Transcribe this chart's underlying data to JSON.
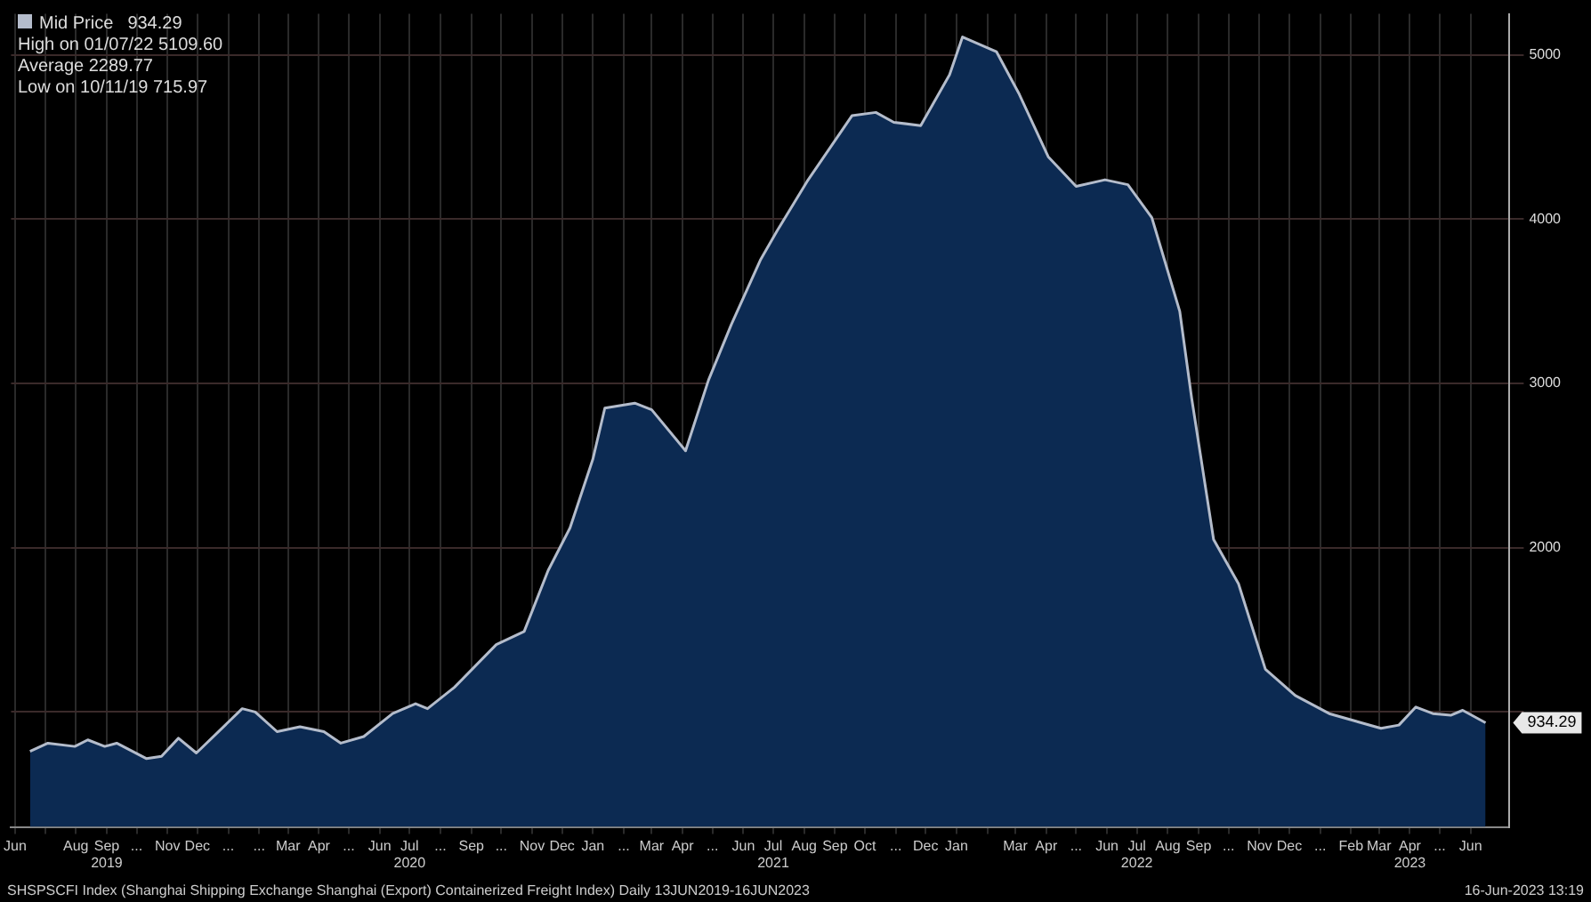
{
  "chart_data": {
    "type": "area",
    "x": [
      "2019-06-16",
      "2019-07-04",
      "2019-07-31",
      "2019-08-13",
      "2019-08-30",
      "2019-09-11",
      "2019-10-11",
      "2019-10-26",
      "2019-11-12",
      "2019-11-30",
      "2020-01-15",
      "2020-01-28",
      "2020-02-19",
      "2020-03-13",
      "2020-04-06",
      "2020-04-23",
      "2020-05-16",
      "2020-06-14",
      "2020-07-07",
      "2020-07-19",
      "2020-08-15",
      "2020-09-26",
      "2020-10-24",
      "2020-11-17",
      "2020-12-09",
      "2021-01-01",
      "2021-01-13",
      "2021-02-12",
      "2021-03-01",
      "2021-04-04",
      "2021-04-27",
      "2021-05-20",
      "2021-06-18",
      "2021-07-05",
      "2021-08-04",
      "2021-09-18",
      "2021-10-12",
      "2021-10-30",
      "2021-11-26",
      "2021-12-25",
      "2022-01-07",
      "2022-02-10",
      "2022-03-05",
      "2022-04-03",
      "2022-05-01",
      "2022-05-30",
      "2022-06-22",
      "2022-07-16",
      "2022-08-13",
      "2022-08-25",
      "2022-09-16",
      "2022-10-11",
      "2022-11-07",
      "2022-12-07",
      "2023-01-10",
      "2023-03-03",
      "2023-03-21",
      "2023-04-07",
      "2023-04-24",
      "2023-05-12",
      "2023-05-24",
      "2023-06-16"
    ],
    "series": [
      {
        "name": "Mid Price",
        "color": "#b4bccb",
        "values": [
          760,
          810,
          790,
          830,
          790,
          810,
          715.97,
          730,
          840,
          750,
          1020,
          1000,
          880,
          910,
          880,
          810,
          850,
          990,
          1050,
          1020,
          1150,
          1410,
          1490,
          1860,
          2120,
          2540,
          2850,
          2880,
          2840,
          2590,
          3020,
          3360,
          3750,
          3930,
          4230,
          4630,
          4650,
          4590,
          4570,
          4880,
          5109.6,
          5020,
          4760,
          4380,
          4200,
          4240,
          4210,
          4010,
          3440,
          2910,
          2050,
          1780,
          1260,
          1100,
          990,
          900,
          920,
          1030,
          990,
          980,
          1010,
          934.29
        ]
      }
    ],
    "xlim": [
      "2019-05-28",
      "2023-07-10"
    ],
    "xticks": [
      {
        "value": "2019-06-01",
        "label": "Jun"
      },
      {
        "value": "2019-07-01",
        "label": null
      },
      {
        "value": "2019-08-01",
        "label": "Aug"
      },
      {
        "value": "2019-09-01",
        "label": "Sep\n2019"
      },
      {
        "value": "2019-10-01",
        "label": "..."
      },
      {
        "value": "2019-11-01",
        "label": "Nov"
      },
      {
        "value": "2019-12-01",
        "label": "Dec"
      },
      {
        "value": "2020-01-01",
        "label": "..."
      },
      {
        "value": "2020-02-01",
        "label": "..."
      },
      {
        "value": "2020-03-01",
        "label": "Mar"
      },
      {
        "value": "2020-04-01",
        "label": "Apr"
      },
      {
        "value": "2020-05-01",
        "label": "..."
      },
      {
        "value": "2020-06-01",
        "label": "Jun"
      },
      {
        "value": "2020-07-01",
        "label": "Jul\n2020"
      },
      {
        "value": "2020-08-01",
        "label": "..."
      },
      {
        "value": "2020-09-01",
        "label": "Sep"
      },
      {
        "value": "2020-10-01",
        "label": "..."
      },
      {
        "value": "2020-11-01",
        "label": "Nov"
      },
      {
        "value": "2020-12-01",
        "label": "Dec"
      },
      {
        "value": "2021-01-01",
        "label": "Jan"
      },
      {
        "value": "2021-02-01",
        "label": "..."
      },
      {
        "value": "2021-03-01",
        "label": "Mar"
      },
      {
        "value": "2021-04-01",
        "label": "Apr"
      },
      {
        "value": "2021-05-01",
        "label": "..."
      },
      {
        "value": "2021-06-01",
        "label": "Jun"
      },
      {
        "value": "2021-07-01",
        "label": "Jul\n2021"
      },
      {
        "value": "2021-08-01",
        "label": "Aug"
      },
      {
        "value": "2021-09-01",
        "label": "Sep"
      },
      {
        "value": "2021-10-01",
        "label": "Oct"
      },
      {
        "value": "2021-11-01",
        "label": "..."
      },
      {
        "value": "2021-12-01",
        "label": "Dec"
      },
      {
        "value": "2022-01-01",
        "label": "Jan"
      },
      {
        "value": "2022-02-01",
        "label": null
      },
      {
        "value": "2022-03-01",
        "label": "Mar"
      },
      {
        "value": "2022-04-01",
        "label": "Apr"
      },
      {
        "value": "2022-05-01",
        "label": "..."
      },
      {
        "value": "2022-06-01",
        "label": "Jun"
      },
      {
        "value": "2022-07-01",
        "label": "Jul\n2022"
      },
      {
        "value": "2022-08-01",
        "label": "Aug"
      },
      {
        "value": "2022-09-01",
        "label": "Sep"
      },
      {
        "value": "2022-10-01",
        "label": "..."
      },
      {
        "value": "2022-11-01",
        "label": "Nov"
      },
      {
        "value": "2022-12-01",
        "label": "Dec"
      },
      {
        "value": "2023-01-01",
        "label": "..."
      },
      {
        "value": "2023-02-01",
        "label": "Feb"
      },
      {
        "value": "2023-03-01",
        "label": "Mar"
      },
      {
        "value": "2023-04-01",
        "label": "Apr\n2023"
      },
      {
        "value": "2023-05-01",
        "label": "..."
      },
      {
        "value": "2023-06-01",
        "label": "Jun"
      }
    ],
    "ylim": [
      300,
      5250
    ],
    "yticks": [
      {
        "value": 1000,
        "label": null
      },
      2000,
      3000,
      4000,
      5000
    ],
    "grid": true,
    "legend": "top left",
    "annotations": [
      "934.29",
      "High on 01/07/22 5109.60",
      "Average 2289.77",
      "Low on 10/11/19 715.97",
      {
        "text": "934.29",
        "x": "2023-06-16",
        "y": 934.29
      },
      "SHSPSCFI Index (Shanghai Shipping Exchange Shanghai (Export) Containerized Freight Index) Daily 13JUN2019-16JUN2023",
      "16-Jun-2023 13:19"
    ]
  }
}
